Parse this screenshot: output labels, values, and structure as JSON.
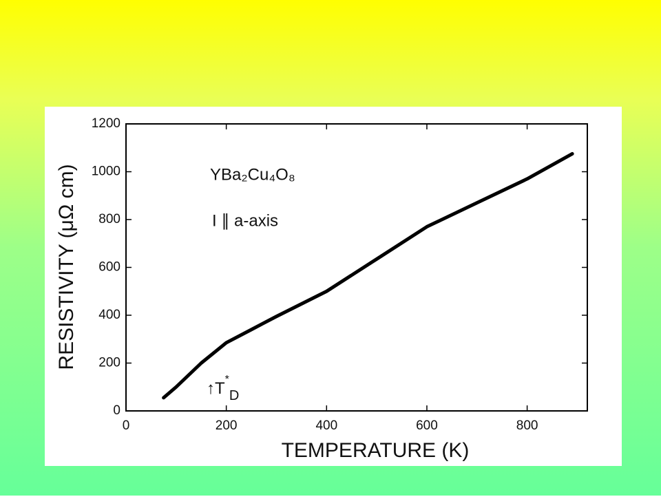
{
  "chart_data": {
    "type": "line",
    "xlabel": "TEMPERATURE (K)",
    "ylabel": "RESISTIVITY (μΩ cm)",
    "annotations": [
      "YBa₂Cu₄O₈",
      "I ∥ a-axis"
    ],
    "marker": {
      "arrow": "↑",
      "symbol": "T",
      "sup": "*",
      "sub": "D"
    },
    "x": [
      75,
      100,
      150,
      200,
      250,
      300,
      400,
      500,
      600,
      700,
      800,
      890
    ],
    "series": [
      {
        "color": "#000000",
        "values": [
          55,
          100,
          200,
          285,
          340,
          395,
          500,
          635,
          770,
          870,
          970,
          1075
        ]
      }
    ],
    "xlim": [
      0,
      920
    ],
    "ylim": [
      0,
      1200
    ],
    "xticks": [
      0,
      200,
      400,
      600,
      800
    ],
    "yticks": [
      0,
      200,
      400,
      600,
      800,
      1000,
      1200
    ]
  }
}
